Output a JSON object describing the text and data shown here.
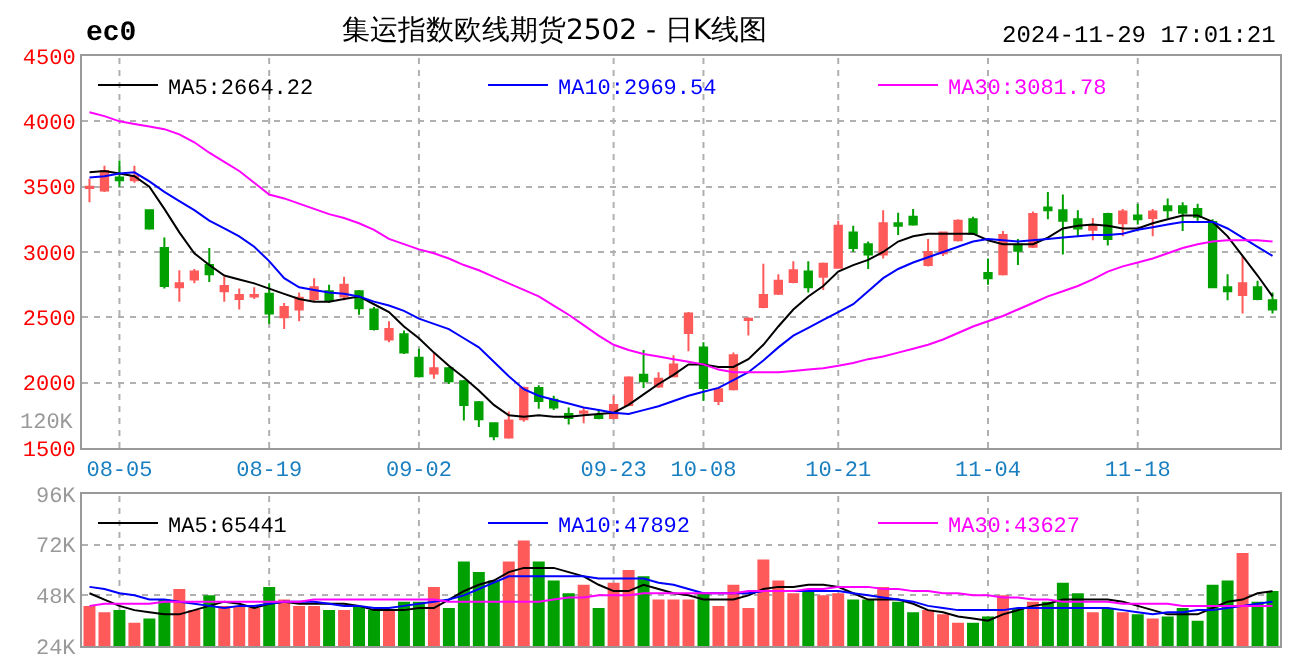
{
  "chart_data": [
    {
      "type": "candlestick",
      "title": "集运指数欧线期货2502 - 日K线图",
      "subtitle": "ec0",
      "annotations": [
        "2024-11-29 17:01:21",
        "120K"
      ],
      "categories": [
        null,
        null,
        "08-05",
        null,
        null,
        null,
        null,
        null,
        null,
        null,
        null,
        null,
        "08-19",
        null,
        null,
        null,
        null,
        null,
        null,
        null,
        null,
        null,
        "09-02",
        null,
        null,
        null,
        null,
        null,
        null,
        null,
        null,
        null,
        null,
        null,
        null,
        "09-23",
        null,
        null,
        null,
        null,
        null,
        "10-08",
        null,
        null,
        null,
        null,
        null,
        null,
        null,
        null,
        "10-21",
        null,
        null,
        null,
        null,
        null,
        null,
        null,
        null,
        null,
        "11-04",
        null,
        null,
        null,
        null,
        null,
        null,
        null,
        null,
        null,
        "11-18",
        null,
        null,
        null,
        null,
        null,
        null,
        null,
        null,
        null
      ],
      "ohlc": [
        [
          3490,
          3560,
          3380,
          3500
        ],
        [
          3470,
          3660,
          3460,
          3620
        ],
        [
          3570,
          3700,
          3500,
          3550
        ],
        [
          3550,
          3660,
          3530,
          3580
        ],
        [
          3320,
          3320,
          3170,
          3180
        ],
        [
          3030,
          3110,
          2720,
          2740
        ],
        [
          2730,
          2860,
          2620,
          2760
        ],
        [
          2790,
          2870,
          2760,
          2850
        ],
        [
          2900,
          3030,
          2770,
          2830
        ],
        [
          2700,
          2810,
          2620,
          2740
        ],
        [
          2640,
          2720,
          2560,
          2670
        ],
        [
          2660,
          2730,
          2640,
          2670
        ],
        [
          2680,
          2760,
          2450,
          2530
        ],
        [
          2500,
          2610,
          2410,
          2580
        ],
        [
          2560,
          2690,
          2470,
          2650
        ],
        [
          2640,
          2800,
          2620,
          2730
        ],
        [
          2700,
          2750,
          2610,
          2630
        ],
        [
          2660,
          2810,
          2630,
          2750
        ],
        [
          2700,
          2710,
          2520,
          2570
        ],
        [
          2560,
          2580,
          2400,
          2410
        ],
        [
          2330,
          2470,
          2310,
          2410
        ],
        [
          2370,
          2400,
          2220,
          2230
        ],
        [
          2190,
          2260,
          2040,
          2050
        ],
        [
          2070,
          2230,
          2030,
          2110
        ],
        [
          2110,
          2120,
          1990,
          2010
        ],
        [
          2010,
          2020,
          1710,
          1830
        ],
        [
          1850,
          1860,
          1660,
          1720
        ],
        [
          1690,
          1690,
          1560,
          1590
        ],
        [
          1580,
          1780,
          1570,
          1710
        ],
        [
          1720,
          1970,
          1700,
          1960
        ],
        [
          1960,
          1980,
          1800,
          1860
        ],
        [
          1870,
          1900,
          1790,
          1810
        ],
        [
          1760,
          1810,
          1680,
          1730
        ],
        [
          1770,
          1810,
          1690,
          1780
        ],
        [
          1750,
          1790,
          1720,
          1730
        ],
        [
          1730,
          1900,
          1720,
          1830
        ],
        [
          1830,
          2050,
          1820,
          2040
        ],
        [
          2060,
          2250,
          1960,
          2010
        ],
        [
          1970,
          2080,
          1960,
          2030
        ],
        [
          2050,
          2210,
          2040,
          2140
        ],
        [
          2380,
          2540,
          2240,
          2530
        ],
        [
          2270,
          2310,
          1860,
          1960
        ],
        [
          1860,
          1960,
          1830,
          1950
        ],
        [
          1950,
          2230,
          1940,
          2210
        ],
        [
          2480,
          2500,
          2360,
          2490
        ],
        [
          2580,
          2910,
          2570,
          2670
        ],
        [
          2680,
          2830,
          2670,
          2780
        ],
        [
          2770,
          2930,
          2760,
          2860
        ],
        [
          2850,
          2930,
          2690,
          2730
        ],
        [
          2810,
          2920,
          2710,
          2910
        ],
        [
          2880,
          3240,
          2880,
          3200
        ],
        [
          3150,
          3200,
          3000,
          3030
        ],
        [
          3060,
          3080,
          2870,
          2980
        ],
        [
          2980,
          3320,
          2950,
          3220
        ],
        [
          3220,
          3300,
          3130,
          3200
        ],
        [
          3270,
          3330,
          3200,
          3210
        ],
        [
          2900,
          3100,
          2890,
          3000
        ],
        [
          2990,
          3150,
          2970,
          3150
        ],
        [
          3090,
          3250,
          3080,
          3240
        ],
        [
          3250,
          3270,
          3130,
          3140
        ],
        [
          2840,
          2950,
          2750,
          2800
        ],
        [
          2830,
          3160,
          2820,
          3130
        ],
        [
          3050,
          3100,
          2900,
          3010
        ],
        [
          3040,
          3310,
          3030,
          3290
        ],
        [
          3340,
          3460,
          3250,
          3320
        ],
        [
          3320,
          3440,
          2980,
          3240
        ],
        [
          3250,
          3320,
          3120,
          3180
        ],
        [
          3170,
          3260,
          3090,
          3200
        ],
        [
          3290,
          3300,
          3050,
          3100
        ],
        [
          3220,
          3330,
          3120,
          3310
        ],
        [
          3280,
          3370,
          3210,
          3250
        ],
        [
          3260,
          3330,
          3120,
          3310
        ],
        [
          3350,
          3410,
          3260,
          3320
        ],
        [
          3350,
          3380,
          3160,
          3300
        ],
        [
          3330,
          3370,
          3240,
          3270
        ],
        [
          3230,
          3250,
          2730,
          2730
        ],
        [
          2730,
          2830,
          2630,
          2700
        ],
        [
          2670,
          2970,
          2530,
          2760
        ],
        [
          2730,
          2780,
          2630,
          2640
        ],
        [
          2630,
          2690,
          2530,
          2560
        ]
      ],
      "colors": [
        "#ff5a5a",
        "#ff5a5a",
        "#00a000",
        "#ff5a5a",
        "#00a000",
        "#00a000",
        "#ff5a5a",
        "#ff5a5a",
        "#00a000",
        "#ff5a5a",
        "#ff5a5a",
        "#ff5a5a",
        "#00a000",
        "#ff5a5a",
        "#ff5a5a",
        "#ff5a5a",
        "#00a000",
        "#ff5a5a",
        "#00a000",
        "#00a000",
        "#ff5a5a",
        "#00a000",
        "#00a000",
        "#ff5a5a",
        "#00a000",
        "#00a000",
        "#00a000",
        "#00a000",
        "#ff5a5a",
        "#ff5a5a",
        "#00a000",
        "#00a000",
        "#00a000",
        "#ff5a5a",
        "#00a000",
        "#ff5a5a",
        "#ff5a5a",
        "#00a000",
        "#ff5a5a",
        "#ff5a5a",
        "#ff5a5a",
        "#00a000",
        "#ff5a5a",
        "#ff5a5a",
        "#ff5a5a",
        "#ff5a5a",
        "#ff5a5a",
        "#ff5a5a",
        "#00a000",
        "#ff5a5a",
        "#ff5a5a",
        "#00a000",
        "#00a000",
        "#ff5a5a",
        "#00a000",
        "#00a000",
        "#ff5a5a",
        "#ff5a5a",
        "#ff5a5a",
        "#00a000",
        "#00a000",
        "#ff5a5a",
        "#00a000",
        "#ff5a5a",
        "#00a000",
        "#00a000",
        "#00a000",
        "#ff5a5a",
        "#00a000",
        "#ff5a5a",
        "#00a000",
        "#ff5a5a",
        "#00a000",
        "#00a000",
        "#00a000",
        "#00a000",
        "#00a000",
        "#ff5a5a",
        "#00a000",
        "#00a000"
      ],
      "series": [
        {
          "type": "line",
          "name": "MA5:2664.22",
          "color": "#000000",
          "values": [
            3610,
            3620,
            3600,
            3580,
            3500,
            3330,
            3150,
            2990,
            2900,
            2820,
            2790,
            2760,
            2720,
            2680,
            2640,
            2620,
            2620,
            2640,
            2660,
            2600,
            2540,
            2430,
            2340,
            2230,
            2130,
            2040,
            1940,
            1830,
            1750,
            1740,
            1750,
            1740,
            1740,
            1750,
            1760,
            1770,
            1830,
            1910,
            1990,
            2060,
            2140,
            2140,
            2120,
            2120,
            2180,
            2290,
            2430,
            2560,
            2660,
            2740,
            2850,
            2900,
            2940,
            3000,
            3080,
            3120,
            3140,
            3140,
            3140,
            3140,
            3090,
            3060,
            3060,
            3060,
            3110,
            3180,
            3200,
            3210,
            3200,
            3180,
            3180,
            3220,
            3250,
            3280,
            3280,
            3230,
            3120,
            2970,
            2820,
            2660
          ]
        },
        {
          "type": "line",
          "name": "MA10:2969.54",
          "color": "#0000ff",
          "values": [
            3570,
            3580,
            3600,
            3610,
            3540,
            3460,
            3390,
            3320,
            3240,
            3180,
            3120,
            3040,
            2930,
            2800,
            2730,
            2710,
            2690,
            2680,
            2660,
            2620,
            2590,
            2550,
            2490,
            2450,
            2410,
            2340,
            2270,
            2160,
            2050,
            1950,
            1900,
            1870,
            1840,
            1810,
            1790,
            1770,
            1760,
            1790,
            1820,
            1860,
            1900,
            1930,
            1960,
            2020,
            2080,
            2170,
            2270,
            2360,
            2420,
            2480,
            2540,
            2600,
            2700,
            2800,
            2870,
            2920,
            2960,
            3000,
            3040,
            3080,
            3100,
            3090,
            3080,
            3090,
            3100,
            3110,
            3120,
            3130,
            3130,
            3140,
            3170,
            3190,
            3210,
            3230,
            3230,
            3230,
            3180,
            3110,
            3040,
            2970
          ]
        },
        {
          "type": "line",
          "name": "MA30:3081.78",
          "color": "#ff00ff",
          "values": [
            4070,
            4040,
            4000,
            3980,
            3960,
            3940,
            3900,
            3840,
            3760,
            3690,
            3620,
            3530,
            3440,
            3410,
            3370,
            3330,
            3290,
            3260,
            3220,
            3170,
            3100,
            3060,
            3020,
            2990,
            2950,
            2900,
            2860,
            2810,
            2760,
            2710,
            2660,
            2590,
            2520,
            2440,
            2360,
            2290,
            2250,
            2220,
            2200,
            2180,
            2160,
            2140,
            2100,
            2080,
            2080,
            2080,
            2080,
            2090,
            2100,
            2110,
            2130,
            2150,
            2180,
            2200,
            2230,
            2260,
            2290,
            2330,
            2380,
            2430,
            2470,
            2510,
            2560,
            2610,
            2660,
            2700,
            2740,
            2790,
            2850,
            2890,
            2920,
            2950,
            2990,
            3030,
            3060,
            3080,
            3090,
            3090,
            3090,
            3080
          ]
        }
      ],
      "ylim": [
        1500,
        4500
      ],
      "yticks": [
        1500,
        2000,
        2500,
        3000,
        3500,
        4000,
        4500
      ],
      "grid": true,
      "legend": "top"
    },
    {
      "type": "bar",
      "categories": [
        null,
        null,
        null,
        null,
        null,
        null,
        null,
        null,
        null,
        null,
        null,
        null,
        null,
        null,
        null,
        null,
        null,
        null,
        null,
        null,
        null,
        null,
        null,
        null,
        null,
        null,
        null,
        null,
        null,
        null,
        null,
        null,
        null,
        null,
        null,
        null,
        null,
        null,
        null,
        null,
        null,
        null,
        null,
        null,
        null,
        null,
        null,
        null,
        null,
        null,
        null,
        null,
        null,
        null,
        null,
        null,
        null,
        null,
        null,
        null,
        null,
        null,
        null,
        null,
        null,
        null,
        null,
        null,
        null,
        null,
        null,
        null,
        null,
        null,
        null,
        null,
        null,
        null,
        null,
        null
      ],
      "values": [
        43,
        40,
        41,
        35,
        37,
        46,
        51,
        41,
        48,
        43,
        43,
        42,
        52,
        46,
        43,
        43,
        41,
        41,
        43,
        41,
        41,
        45,
        45,
        52,
        42,
        64,
        59,
        55,
        64,
        74,
        64,
        55,
        49,
        53,
        42,
        54,
        60,
        57,
        46,
        46,
        46,
        49,
        43,
        53,
        42,
        65,
        55,
        49,
        51,
        48,
        49,
        46,
        46,
        52,
        45,
        40,
        41,
        39,
        35,
        35,
        38,
        48,
        42,
        45,
        45,
        54,
        49,
        40,
        42,
        40,
        39,
        37,
        38,
        42,
        36,
        53,
        55,
        68,
        45,
        50
      ],
      "colors": [
        "#ff5a5a",
        "#ff5a5a",
        "#00a000",
        "#ff5a5a",
        "#00a000",
        "#00a000",
        "#ff5a5a",
        "#ff5a5a",
        "#00a000",
        "#ff5a5a",
        "#ff5a5a",
        "#ff5a5a",
        "#00a000",
        "#ff5a5a",
        "#ff5a5a",
        "#ff5a5a",
        "#00a000",
        "#ff5a5a",
        "#00a000",
        "#00a000",
        "#ff5a5a",
        "#00a000",
        "#00a000",
        "#ff5a5a",
        "#00a000",
        "#00a000",
        "#00a000",
        "#00a000",
        "#ff5a5a",
        "#ff5a5a",
        "#00a000",
        "#00a000",
        "#00a000",
        "#ff5a5a",
        "#00a000",
        "#ff5a5a",
        "#ff5a5a",
        "#00a000",
        "#ff5a5a",
        "#ff5a5a",
        "#ff5a5a",
        "#00a000",
        "#ff5a5a",
        "#ff5a5a",
        "#ff5a5a",
        "#ff5a5a",
        "#ff5a5a",
        "#ff5a5a",
        "#00a000",
        "#ff5a5a",
        "#ff5a5a",
        "#00a000",
        "#00a000",
        "#ff5a5a",
        "#00a000",
        "#00a000",
        "#ff5a5a",
        "#ff5a5a",
        "#ff5a5a",
        "#00a000",
        "#00a000",
        "#ff5a5a",
        "#00a000",
        "#ff5a5a",
        "#00a000",
        "#00a000",
        "#00a000",
        "#ff5a5a",
        "#00a000",
        "#ff5a5a",
        "#00a000",
        "#ff5a5a",
        "#00a000",
        "#00a000",
        "#00a000",
        "#00a000",
        "#00a000",
        "#ff5a5a",
        "#00a000",
        "#00a000"
      ],
      "series": [
        {
          "type": "line",
          "name": "MA5:65441",
          "color": "#000000",
          "values": [
            49,
            46,
            43,
            41,
            40,
            39,
            39,
            41,
            43,
            45,
            44,
            42,
            44,
            45,
            44,
            44,
            44,
            44,
            43,
            41,
            41,
            41,
            42,
            42,
            46,
            50,
            53,
            55,
            59,
            61,
            61,
            61,
            59,
            57,
            53,
            50,
            50,
            53,
            51,
            49,
            48,
            46,
            46,
            46,
            48,
            51,
            52,
            52,
            53,
            53,
            52,
            49,
            46,
            46,
            46,
            44,
            41,
            40,
            38,
            37,
            36,
            39,
            41,
            43,
            44,
            46,
            46,
            46,
            46,
            45,
            43,
            41,
            39,
            39,
            39,
            42,
            45,
            46,
            49,
            50
          ]
        },
        {
          "type": "line",
          "name": "MA10:47892",
          "color": "#0000ff",
          "values": [
            52,
            51,
            49,
            48,
            46,
            46,
            45,
            44,
            43,
            42,
            43,
            43,
            44,
            45,
            45,
            45,
            44,
            43,
            43,
            42,
            42,
            43,
            44,
            45,
            46,
            48,
            51,
            54,
            57,
            57,
            57,
            57,
            57,
            57,
            56,
            56,
            56,
            56,
            54,
            53,
            51,
            49,
            49,
            49,
            49,
            50,
            50,
            50,
            50,
            50,
            50,
            49,
            48,
            47,
            46,
            45,
            43,
            42,
            41,
            41,
            41,
            41,
            42,
            42,
            42,
            42,
            42,
            42,
            42,
            41,
            40,
            39,
            40,
            40,
            41,
            41,
            42,
            43,
            44,
            45
          ]
        },
        {
          "type": "line",
          "name": "MA30:43627",
          "color": "#ff00ff",
          "values": [
            43,
            44,
            44,
            44,
            44,
            45,
            45,
            45,
            45,
            45,
            45,
            45,
            45,
            45,
            45,
            46,
            46,
            46,
            46,
            46,
            46,
            46,
            46,
            46,
            45,
            45,
            45,
            45,
            45,
            45,
            45,
            46,
            47,
            47,
            48,
            48,
            48,
            49,
            49,
            49,
            49,
            49,
            49,
            49,
            50,
            50,
            50,
            50,
            51,
            51,
            52,
            52,
            52,
            51,
            51,
            50,
            50,
            49,
            49,
            48,
            48,
            47,
            47,
            46,
            46,
            45,
            45,
            45,
            45,
            44,
            44,
            44,
            44,
            43,
            43,
            43,
            43,
            43,
            43,
            43
          ]
        }
      ],
      "ylim": [
        24,
        96
      ],
      "yticks": [
        {
          "value": 24,
          "label": "24K"
        },
        {
          "value": 48,
          "label": "48K"
        },
        {
          "value": 72,
          "label": "72K"
        },
        {
          "value": 96,
          "label": "96K"
        }
      ],
      "grid": true,
      "legend": "top",
      "tick_labels": "y"
    }
  ]
}
